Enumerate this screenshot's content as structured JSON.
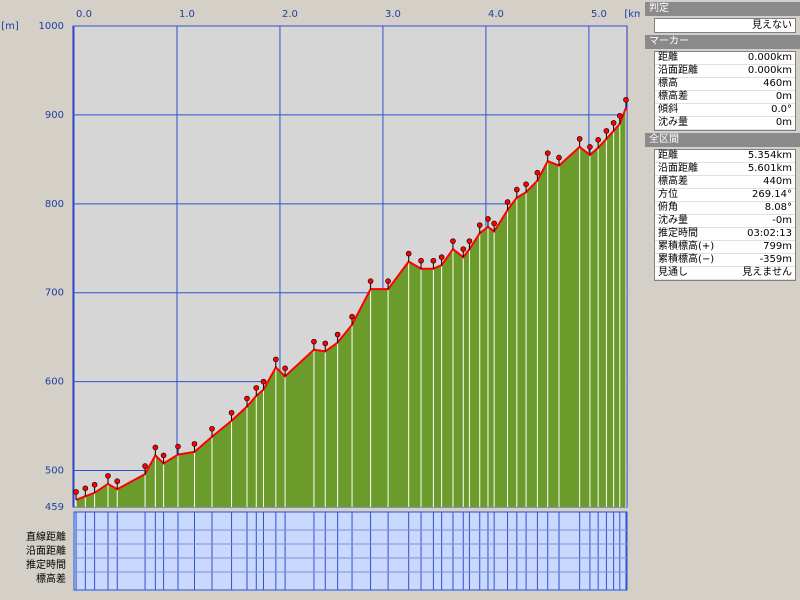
{
  "chart_data": {
    "type": "area",
    "x_unit": "[km]",
    "y_unit": "[m]",
    "x": [
      0.02,
      0.11,
      0.2,
      0.33,
      0.42,
      0.69,
      0.79,
      0.87,
      1.01,
      1.17,
      1.34,
      1.53,
      1.68,
      1.77,
      1.84,
      1.96,
      2.05,
      2.33,
      2.44,
      2.56,
      2.7,
      2.88,
      3.05,
      3.25,
      3.37,
      3.49,
      3.57,
      3.68,
      3.78,
      3.84,
      3.94,
      4.02,
      4.08,
      4.21,
      4.3,
      4.39,
      4.5,
      4.6,
      4.71,
      4.91,
      5.01,
      5.09,
      5.17,
      5.24,
      5.3,
      5.36
    ],
    "values": [
      467,
      471,
      475,
      485,
      479,
      496,
      517,
      508,
      518,
      521,
      538,
      556,
      572,
      584,
      591,
      616,
      606,
      636,
      634,
      644,
      664,
      704,
      704,
      735,
      727,
      727,
      731,
      749,
      740,
      749,
      767,
      774,
      769,
      793,
      807,
      813,
      826,
      848,
      843,
      864,
      855,
      863,
      873,
      882,
      890,
      908
    ],
    "color": "#6b9b2a",
    "line_color": "#ff0000",
    "xlim": [
      0,
      5.37
    ],
    "ylim": [
      459,
      1000
    ],
    "xticks": [
      {
        "value": 0,
        "label": "0.0"
      },
      {
        "value": 1,
        "label": "1.0"
      },
      {
        "value": 2,
        "label": "2.0"
      },
      {
        "value": 3,
        "label": "3.0"
      },
      {
        "value": 4,
        "label": "4.0"
      },
      {
        "value": 5,
        "label": "5.0"
      }
    ],
    "yticks": [
      459,
      500,
      600,
      700,
      800,
      900,
      1000
    ],
    "grid": true,
    "table_rows": [
      "直線距離",
      "沿面距離",
      "推定時間",
      "標高差"
    ]
  },
  "panel": {
    "judge": {
      "title": "判定",
      "value": "見えない"
    },
    "marker": {
      "title": "マーカー",
      "rows": [
        [
          "距離",
          "0.000km"
        ],
        [
          "沿面距離",
          "0.000km"
        ],
        [
          "標高",
          "460m"
        ],
        [
          "標高差",
          "0m"
        ],
        [
          "傾斜",
          "0.0°"
        ],
        [
          "沈み量",
          "0m"
        ]
      ]
    },
    "total": {
      "title": "全区間",
      "rows": [
        [
          "距離",
          "5.354km"
        ],
        [
          "沿面距離",
          "5.601km"
        ],
        [
          "標高差",
          "440m"
        ],
        [
          "方位",
          "269.14°"
        ],
        [
          "俯角",
          "8.08°"
        ],
        [
          "沈み量",
          "-0m"
        ],
        [
          "推定時間",
          "03:02:13"
        ],
        [
          "累積標高(+)",
          "799m"
        ],
        [
          "累積標高(−)",
          "-359m"
        ],
        [
          "見通し",
          "見えません"
        ]
      ]
    }
  }
}
